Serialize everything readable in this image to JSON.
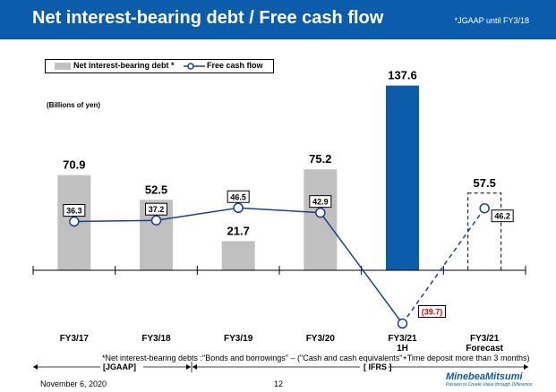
{
  "header": {
    "title": "Net interest-bearing debt / Free cash flow",
    "note": "*JGAAP until FY3/18"
  },
  "legend": {
    "bar_label": "Net interest-bearing debt *",
    "line_label": "Free cash flow"
  },
  "unit_label": "(Billions of yen)",
  "chart_data": {
    "type": "bar",
    "categories": [
      "FY3/17",
      "FY3/18",
      "FY3/19",
      "FY3/20",
      "FY3/21\n1H",
      "FY3/21\nForecast"
    ],
    "series": [
      {
        "name": "Net interest-bearing debt *",
        "type": "bar",
        "values": [
          70.9,
          52.5,
          21.7,
          75.2,
          137.6,
          57.5
        ],
        "labels": [
          "70.9",
          "52.5",
          "21.7",
          "75.2",
          "137.6",
          "57.5"
        ],
        "styles": [
          "gray",
          "gray",
          "gray",
          "gray",
          "blue",
          "dashed"
        ]
      },
      {
        "name": "Free cash flow",
        "type": "line",
        "values": [
          36.3,
          37.2,
          46.5,
          42.9,
          -39.7,
          46.2
        ],
        "labels": [
          "36.3",
          "37.2",
          "46.5",
          "42.9",
          "(39.7)",
          "46.2"
        ],
        "dashed_last_segment": true
      }
    ],
    "ylim": [
      -50,
      145
    ],
    "grid": false,
    "colors": {
      "bar": "#c0c0c0",
      "highlight_bar": "#0b5cab",
      "line": "#1f3f8f",
      "negative_label": "#e00000"
    }
  },
  "footer": {
    "note": "*Net interest-bearing debts :\"Bonds and borrowings\" – (\"Cash and cash equivalents\"+Time deposit more than 3 months)",
    "era_jgaap": "[JGAAP]",
    "era_ifrs": "[ IFRS ]",
    "date": "November 6, 2020",
    "page": "12",
    "logo_name": "MinebeaMitsumi",
    "logo_tagline": "Passion to Create Value through Difference"
  }
}
